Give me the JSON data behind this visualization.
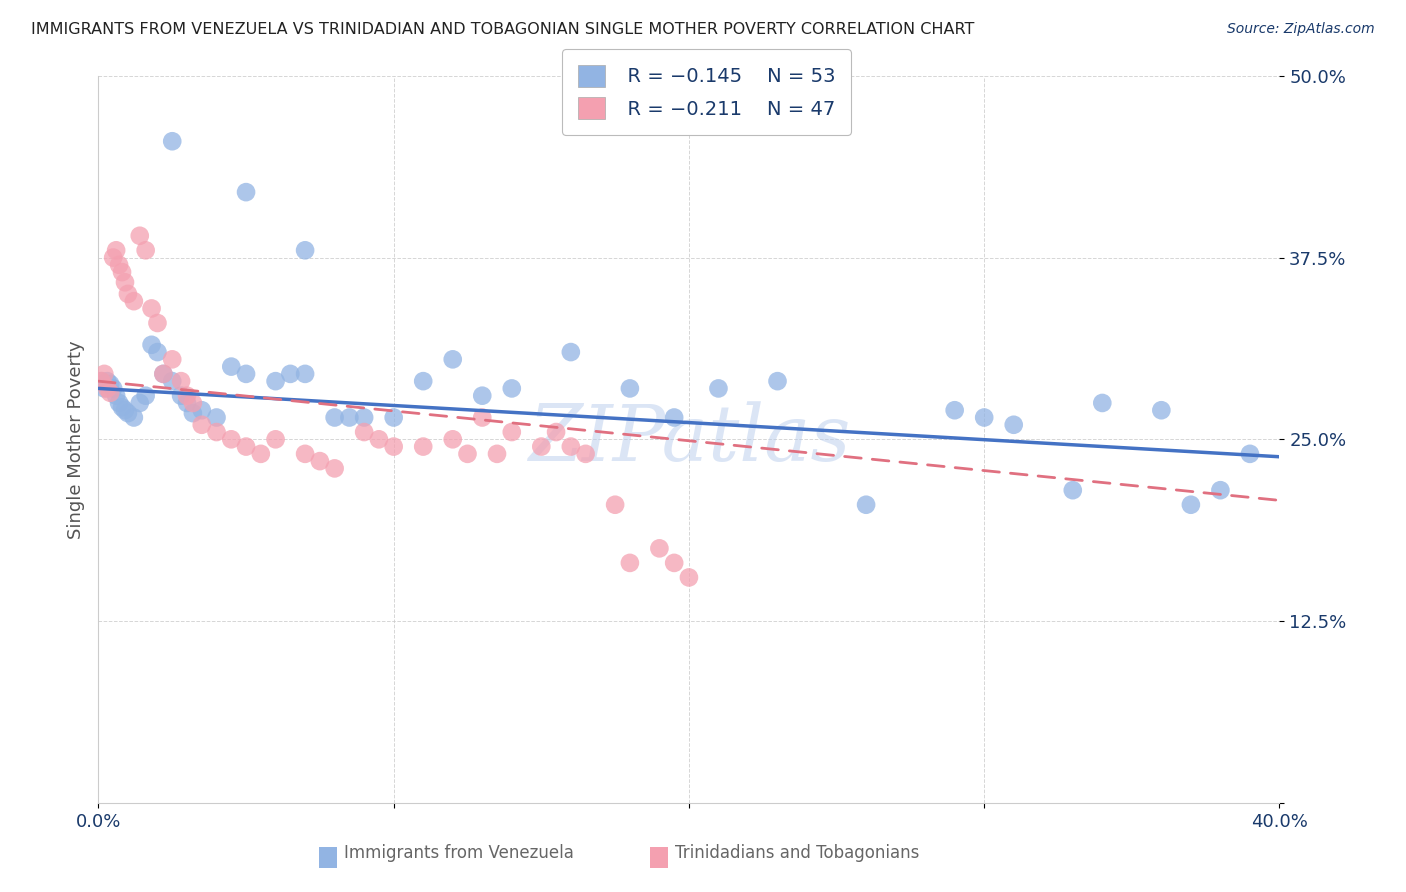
{
  "title": "IMMIGRANTS FROM VENEZUELA VS TRINIDADIAN AND TOBAGONIAN SINGLE MOTHER POVERTY CORRELATION CHART",
  "source": "Source: ZipAtlas.com",
  "xlabel_blue": "Immigrants from Venezuela",
  "xlabel_pink": "Trinidadians and Tobagonians",
  "ylabel": "Single Mother Poverty",
  "watermark": "ZIPatlas",
  "legend_blue_R": "R = −0.145",
  "legend_blue_N": "N = 53",
  "legend_pink_R": "R = −0.211",
  "legend_pink_N": "N = 47",
  "xlim": [
    0,
    0.4
  ],
  "ylim": [
    0,
    0.5
  ],
  "blue_color": "#92b4e3",
  "pink_color": "#f4a0b0",
  "blue_line_color": "#4472c4",
  "pink_line_color": "#e07080",
  "text_color": "#1a3a6b",
  "grid_color": "#cccccc",
  "blue_scatter_x": [
    0.001,
    0.002,
    0.003,
    0.004,
    0.005,
    0.006,
    0.007,
    0.008,
    0.009,
    0.01,
    0.012,
    0.014,
    0.016,
    0.018,
    0.02,
    0.022,
    0.025,
    0.028,
    0.03,
    0.032,
    0.035,
    0.04,
    0.045,
    0.05,
    0.06,
    0.065,
    0.07,
    0.08,
    0.085,
    0.09,
    0.1,
    0.11,
    0.12,
    0.13,
    0.14,
    0.16,
    0.18,
    0.195,
    0.21,
    0.23,
    0.26,
    0.29,
    0.3,
    0.31,
    0.33,
    0.34,
    0.36,
    0.37,
    0.38,
    0.39,
    0.025,
    0.05,
    0.07
  ],
  "blue_scatter_y": [
    0.29,
    0.285,
    0.29,
    0.288,
    0.285,
    0.28,
    0.275,
    0.272,
    0.27,
    0.268,
    0.265,
    0.275,
    0.28,
    0.315,
    0.31,
    0.295,
    0.29,
    0.28,
    0.275,
    0.268,
    0.27,
    0.265,
    0.3,
    0.295,
    0.29,
    0.295,
    0.295,
    0.265,
    0.265,
    0.265,
    0.265,
    0.29,
    0.305,
    0.28,
    0.285,
    0.31,
    0.285,
    0.265,
    0.285,
    0.29,
    0.205,
    0.27,
    0.265,
    0.26,
    0.215,
    0.275,
    0.27,
    0.205,
    0.215,
    0.24,
    0.455,
    0.42,
    0.38
  ],
  "pink_scatter_x": [
    0.001,
    0.002,
    0.003,
    0.004,
    0.005,
    0.006,
    0.007,
    0.008,
    0.009,
    0.01,
    0.012,
    0.014,
    0.016,
    0.018,
    0.02,
    0.022,
    0.025,
    0.028,
    0.03,
    0.032,
    0.035,
    0.04,
    0.045,
    0.05,
    0.055,
    0.06,
    0.07,
    0.075,
    0.08,
    0.09,
    0.095,
    0.1,
    0.11,
    0.12,
    0.125,
    0.13,
    0.135,
    0.14,
    0.15,
    0.155,
    0.16,
    0.165,
    0.175,
    0.18,
    0.19,
    0.195,
    0.2
  ],
  "pink_scatter_y": [
    0.29,
    0.295,
    0.285,
    0.282,
    0.375,
    0.38,
    0.37,
    0.365,
    0.358,
    0.35,
    0.345,
    0.39,
    0.38,
    0.34,
    0.33,
    0.295,
    0.305,
    0.29,
    0.28,
    0.275,
    0.26,
    0.255,
    0.25,
    0.245,
    0.24,
    0.25,
    0.24,
    0.235,
    0.23,
    0.255,
    0.25,
    0.245,
    0.245,
    0.25,
    0.24,
    0.265,
    0.24,
    0.255,
    0.245,
    0.255,
    0.245,
    0.24,
    0.205,
    0.165,
    0.175,
    0.165,
    0.155
  ],
  "blue_line_x": [
    0.0,
    0.4
  ],
  "blue_line_y": [
    0.285,
    0.238
  ],
  "pink_line_x": [
    0.0,
    0.4
  ],
  "pink_line_y": [
    0.29,
    0.208
  ]
}
